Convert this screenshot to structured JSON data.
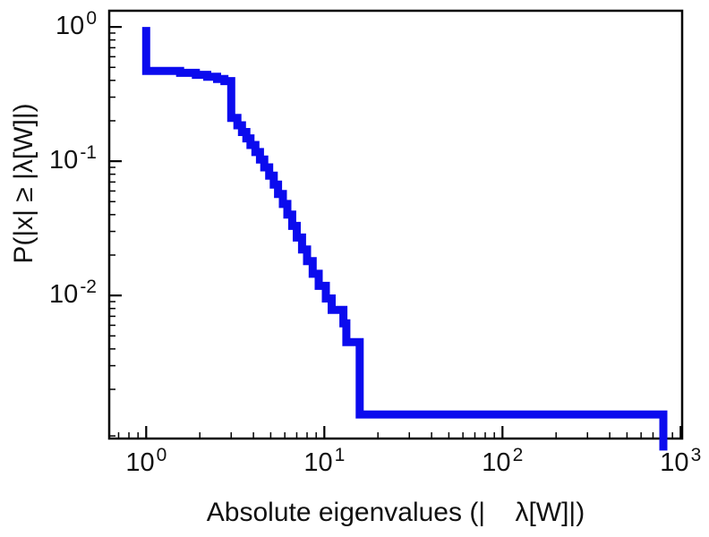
{
  "figure": {
    "background": "#ffffff",
    "frame_color": "#000000"
  },
  "chart_data": {
    "type": "line",
    "subtype": "ccdf-step",
    "title": "",
    "xlabel": "Absolute eigenvalues (|    λ[W]|)",
    "ylabel": "P(|x| ≥ |λ[W]|)",
    "xscale": "log",
    "yscale": "log",
    "xlim": [
      0.62,
      1020
    ],
    "ylim": [
      0.00086,
      1.32
    ],
    "grid": false,
    "legend": null,
    "line_color": "#0b0bee",
    "line_width": 9,
    "x_ticks": [
      {
        "value": 1,
        "base": "10",
        "exp": "0"
      },
      {
        "value": 10,
        "base": "10",
        "exp": "1"
      },
      {
        "value": 100,
        "base": "10",
        "exp": "2"
      },
      {
        "value": 1000,
        "base": "10",
        "exp": "3"
      }
    ],
    "y_ticks": [
      {
        "value": 1,
        "base": "10",
        "exp": "0"
      },
      {
        "value": 0.1,
        "base": "10",
        "exp": "-1"
      },
      {
        "value": 0.01,
        "base": "10",
        "exp": "-2"
      }
    ],
    "minor_ticks": true,
    "steps": [
      [
        1.0,
        1.0
      ],
      [
        1.0,
        0.47
      ],
      [
        1.55,
        0.47
      ],
      [
        1.55,
        0.455
      ],
      [
        1.9,
        0.455
      ],
      [
        1.9,
        0.44
      ],
      [
        2.2,
        0.44
      ],
      [
        2.2,
        0.425
      ],
      [
        2.5,
        0.425
      ],
      [
        2.5,
        0.41
      ],
      [
        2.75,
        0.41
      ],
      [
        2.75,
        0.395
      ],
      [
        3.0,
        0.395
      ],
      [
        3.0,
        0.21
      ],
      [
        3.25,
        0.21
      ],
      [
        3.25,
        0.185
      ],
      [
        3.45,
        0.185
      ],
      [
        3.45,
        0.165
      ],
      [
        3.65,
        0.165
      ],
      [
        3.65,
        0.148
      ],
      [
        3.85,
        0.148
      ],
      [
        3.85,
        0.132
      ],
      [
        4.1,
        0.132
      ],
      [
        4.1,
        0.117
      ],
      [
        4.35,
        0.117
      ],
      [
        4.35,
        0.103
      ],
      [
        4.6,
        0.103
      ],
      [
        4.6,
        0.09
      ],
      [
        4.9,
        0.09
      ],
      [
        4.9,
        0.078
      ],
      [
        5.2,
        0.078
      ],
      [
        5.2,
        0.067
      ],
      [
        5.5,
        0.067
      ],
      [
        5.5,
        0.057
      ],
      [
        5.85,
        0.057
      ],
      [
        5.85,
        0.048
      ],
      [
        6.2,
        0.048
      ],
      [
        6.2,
        0.04
      ],
      [
        6.6,
        0.04
      ],
      [
        6.6,
        0.033
      ],
      [
        7.0,
        0.033
      ],
      [
        7.0,
        0.027
      ],
      [
        7.5,
        0.027
      ],
      [
        7.5,
        0.022
      ],
      [
        8.0,
        0.022
      ],
      [
        8.0,
        0.018
      ],
      [
        8.6,
        0.018
      ],
      [
        8.6,
        0.0145
      ],
      [
        9.3,
        0.0145
      ],
      [
        9.3,
        0.0118
      ],
      [
        10.2,
        0.0118
      ],
      [
        10.2,
        0.0095
      ],
      [
        11.0,
        0.0095
      ],
      [
        11.0,
        0.0078
      ],
      [
        12.8,
        0.0078
      ],
      [
        12.8,
        0.0062
      ],
      [
        13.3,
        0.0062
      ],
      [
        13.3,
        0.0045
      ],
      [
        15.8,
        0.0045
      ],
      [
        15.8,
        0.0013
      ],
      [
        800,
        0.0013
      ],
      [
        800,
        0.0007
      ]
    ]
  }
}
